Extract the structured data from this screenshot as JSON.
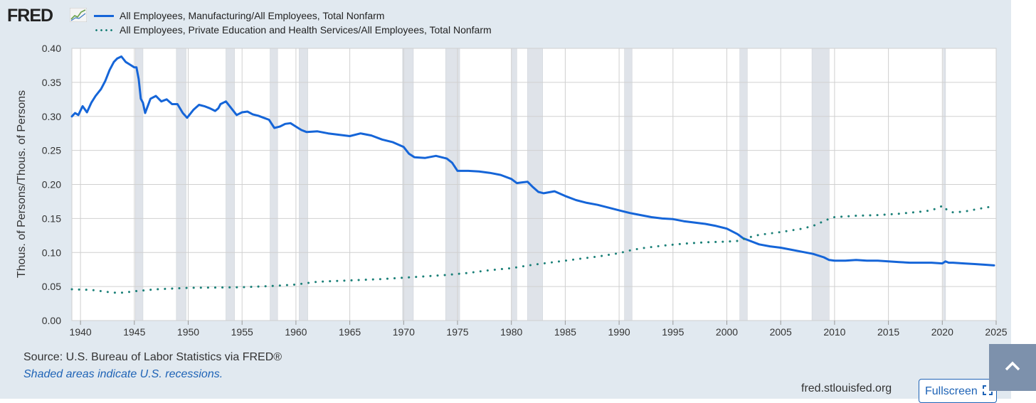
{
  "brand": {
    "name": "FRED"
  },
  "legend": [
    {
      "label": "All Employees, Manufacturing/All Employees, Total Nonfarm",
      "color": "#1565d8",
      "style": "solid"
    },
    {
      "label": "All Employees, Private Education and Health Services/All Employees, Total Nonfarm",
      "color": "#1b8078",
      "style": "dotted"
    }
  ],
  "chart_data": {
    "type": "line",
    "ylabel": "Thous. of Persons/Thous. of Persons",
    "xlabel": "",
    "xlim": [
      1939.2,
      2025.0
    ],
    "ylim": [
      0.0,
      0.4
    ],
    "grid": true,
    "legend_position": "top-left",
    "x_ticks": [
      "1940",
      "1945",
      "1950",
      "1955",
      "1960",
      "1965",
      "1970",
      "1975",
      "1980",
      "1985",
      "1990",
      "1995",
      "2000",
      "2005",
      "2010",
      "2015",
      "2020",
      "2025"
    ],
    "y_ticks": [
      "0.40",
      "0.35",
      "0.30",
      "0.25",
      "0.20",
      "0.15",
      "0.10",
      "0.05",
      "0.00"
    ],
    "recessions": [
      [
        1945.1,
        1945.8
      ],
      [
        1948.9,
        1949.8
      ],
      [
        1953.5,
        1954.3
      ],
      [
        1957.6,
        1958.3
      ],
      [
        1960.3,
        1961.1
      ],
      [
        1969.9,
        1970.9
      ],
      [
        1973.9,
        1975.2
      ],
      [
        1980.0,
        1980.5
      ],
      [
        1981.5,
        1982.9
      ],
      [
        1990.5,
        1991.2
      ],
      [
        2001.2,
        2001.9
      ],
      [
        2007.9,
        2009.5
      ],
      [
        2020.1,
        2020.3
      ]
    ],
    "series": [
      {
        "name": "All Employees, Manufacturing/All Employees, Total Nonfarm",
        "x": [
          1939.2,
          1939.5,
          1939.8,
          1940.2,
          1940.6,
          1941.0,
          1941.4,
          1941.9,
          1942.3,
          1942.7,
          1943.1,
          1943.4,
          1943.8,
          1944.2,
          1944.6,
          1945.0,
          1945.2,
          1945.4,
          1945.6,
          1945.8,
          1946.0,
          1946.5,
          1947.0,
          1947.5,
          1948.0,
          1948.5,
          1949.0,
          1949.5,
          1949.9,
          1950.5,
          1951.0,
          1951.5,
          1952.0,
          1952.5,
          1952.8,
          1953.0,
          1953.5,
          1954.0,
          1954.5,
          1955.0,
          1955.5,
          1956.0,
          1956.5,
          1957.0,
          1957.5,
          1958.0,
          1958.5,
          1959.0,
          1959.5,
          1960.0,
          1960.5,
          1961.0,
          1962.0,
          1963.0,
          1964.0,
          1965.0,
          1966.0,
          1967.0,
          1968.0,
          1969.0,
          1970.0,
          1970.5,
          1971.0,
          1972.0,
          1973.0,
          1974.0,
          1974.5,
          1975.0,
          1976.0,
          1977.0,
          1978.0,
          1979.0,
          1980.0,
          1980.5,
          1981.0,
          1981.5,
          1982.0,
          1982.5,
          1983.0,
          1984.0,
          1985.0,
          1986.0,
          1987.0,
          1988.0,
          1989.0,
          1990.0,
          1991.0,
          1992.0,
          1993.0,
          1994.0,
          1995.0,
          1996.0,
          1997.0,
          1998.0,
          1999.0,
          2000.0,
          2001.0,
          2001.5,
          2002.0,
          2003.0,
          2004.0,
          2005.0,
          2006.0,
          2007.0,
          2008.0,
          2009.0,
          2009.5,
          2010.0,
          2011.0,
          2012.0,
          2013.0,
          2014.0,
          2015.0,
          2016.0,
          2017.0,
          2018.0,
          2019.0,
          2020.0,
          2020.3,
          2020.6,
          2021.0,
          2022.0,
          2023.0,
          2024.0,
          2024.8
        ],
        "values": [
          0.3,
          0.305,
          0.302,
          0.315,
          0.306,
          0.32,
          0.33,
          0.34,
          0.352,
          0.368,
          0.38,
          0.385,
          0.388,
          0.38,
          0.376,
          0.372,
          0.372,
          0.355,
          0.326,
          0.32,
          0.305,
          0.326,
          0.33,
          0.322,
          0.325,
          0.318,
          0.318,
          0.305,
          0.298,
          0.31,
          0.317,
          0.315,
          0.312,
          0.308,
          0.312,
          0.318,
          0.322,
          0.312,
          0.302,
          0.306,
          0.307,
          0.303,
          0.301,
          0.298,
          0.295,
          0.283,
          0.285,
          0.289,
          0.29,
          0.285,
          0.28,
          0.277,
          0.278,
          0.275,
          0.273,
          0.271,
          0.275,
          0.272,
          0.266,
          0.262,
          0.255,
          0.245,
          0.24,
          0.239,
          0.242,
          0.238,
          0.232,
          0.22,
          0.22,
          0.219,
          0.217,
          0.214,
          0.208,
          0.202,
          0.203,
          0.204,
          0.196,
          0.189,
          0.187,
          0.19,
          0.183,
          0.177,
          0.173,
          0.17,
          0.166,
          0.162,
          0.158,
          0.155,
          0.152,
          0.15,
          0.149,
          0.146,
          0.144,
          0.142,
          0.139,
          0.135,
          0.127,
          0.121,
          0.118,
          0.112,
          0.109,
          0.107,
          0.104,
          0.101,
          0.098,
          0.093,
          0.089,
          0.088,
          0.088,
          0.089,
          0.088,
          0.088,
          0.087,
          0.086,
          0.085,
          0.085,
          0.085,
          0.084,
          0.087,
          0.085,
          0.085,
          0.084,
          0.083,
          0.082,
          0.081
        ]
      },
      {
        "name": "All Employees, Private Education and Health Services/All Employees, Total Nonfarm",
        "x": [
          1939.2,
          1941.0,
          1943.0,
          1944.0,
          1945.0,
          1947.0,
          1950.0,
          1955.0,
          1958.0,
          1960.0,
          1962.0,
          1965.0,
          1968.0,
          1970.0,
          1972.0,
          1974.0,
          1976.0,
          1978.0,
          1980.0,
          1982.0,
          1984.0,
          1986.0,
          1988.0,
          1990.0,
          1991.0,
          1992.0,
          1994.0,
          1996.0,
          1998.0,
          2000.0,
          2001.0,
          2002.0,
          2003.0,
          2005.0,
          2007.0,
          2008.0,
          2009.0,
          2009.7,
          2010.0,
          2012.0,
          2014.0,
          2016.0,
          2018.0,
          2019.0,
          2020.1,
          2020.4,
          2021.0,
          2022.0,
          2023.0,
          2024.0,
          2024.8
        ],
        "values": [
          0.046,
          0.045,
          0.041,
          0.041,
          0.043,
          0.046,
          0.048,
          0.049,
          0.051,
          0.053,
          0.057,
          0.059,
          0.061,
          0.063,
          0.065,
          0.067,
          0.07,
          0.074,
          0.077,
          0.082,
          0.086,
          0.09,
          0.094,
          0.099,
          0.103,
          0.106,
          0.11,
          0.113,
          0.115,
          0.116,
          0.117,
          0.122,
          0.126,
          0.13,
          0.135,
          0.139,
          0.146,
          0.151,
          0.152,
          0.154,
          0.155,
          0.157,
          0.16,
          0.162,
          0.169,
          0.163,
          0.159,
          0.16,
          0.163,
          0.166,
          0.168
        ]
      }
    ]
  },
  "footer": {
    "source": "Source: U.S. Bureau of Labor Statistics via FRED®",
    "note": "Shaded areas indicate U.S. recessions.",
    "site": "fred.stlouisfed.org",
    "fullscreen_label": "Fullscreen"
  }
}
